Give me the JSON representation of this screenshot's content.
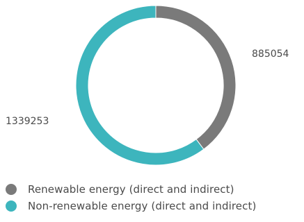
{
  "chart_data": {
    "type": "pie",
    "variant": "donut",
    "slices": [
      {
        "label": "Renewable energy (direct and indirect)",
        "value": 885054,
        "value_label": "885054",
        "color": "#7a7a7a"
      },
      {
        "label": "Non-renewable energy (direct and indirect)",
        "value": 1339253,
        "value_label": "1339253",
        "color": "#3db5bd"
      }
    ],
    "legend_position": "bottom-left"
  }
}
